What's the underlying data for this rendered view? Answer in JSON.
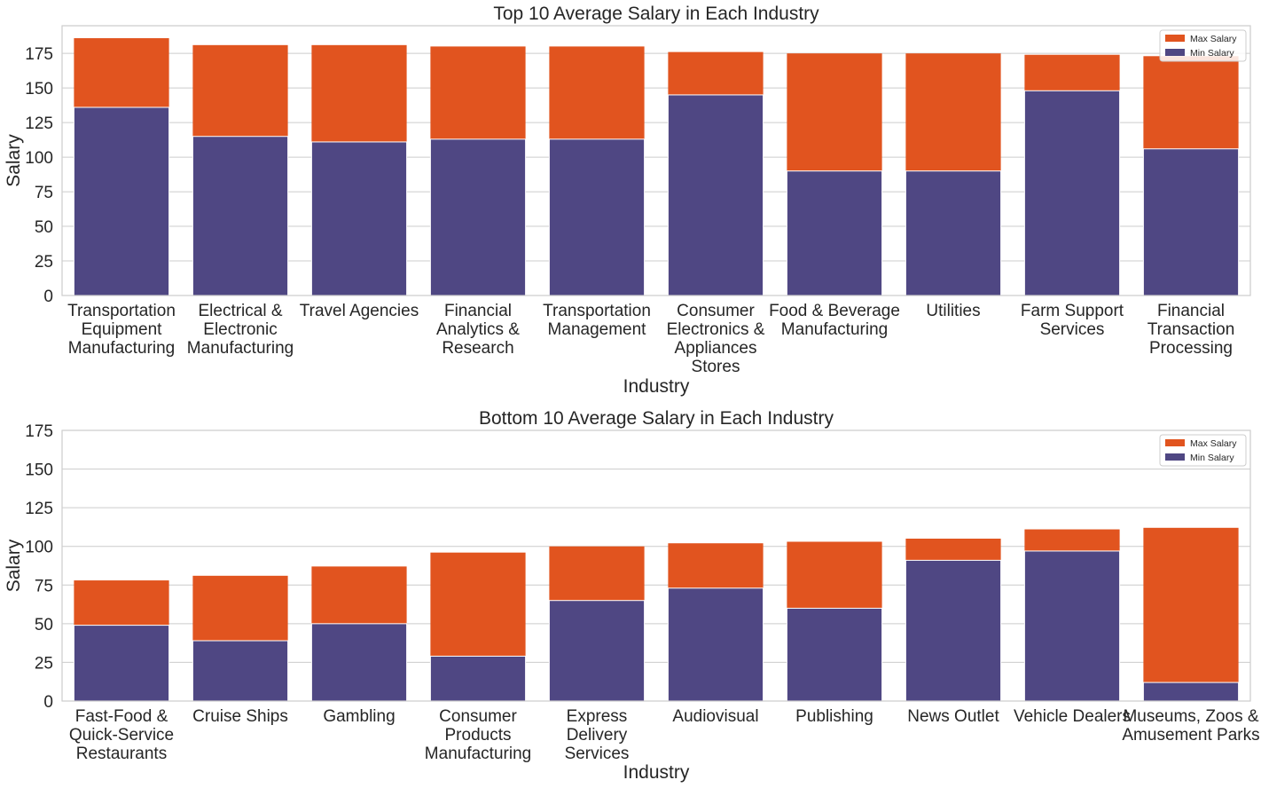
{
  "colors": {
    "max_salary": "#e1541f",
    "min_salary": "#4f4783",
    "grid": "#cccccc",
    "frame": "#cccccc",
    "text": "#262626"
  },
  "chart_data": [
    {
      "type": "bar",
      "title": "Top 10 Average Salary in Each Industry",
      "xlabel": "Industry",
      "ylabel": "Salary",
      "ylim": [
        0,
        195
      ],
      "yticks": [
        0,
        25,
        50,
        75,
        100,
        125,
        150,
        175
      ],
      "grid": true,
      "legend_position": "top-right",
      "categories": [
        [
          "Transportation",
          "Equipment",
          "Manufacturing"
        ],
        [
          "Electrical &",
          "Electronic",
          "Manufacturing"
        ],
        [
          "Travel Agencies"
        ],
        [
          "Financial",
          "Analytics &",
          "Research"
        ],
        [
          "Transportation",
          "Management"
        ],
        [
          "Consumer",
          "Electronics &",
          "Appliances",
          "Stores"
        ],
        [
          "Food & Beverage",
          "Manufacturing"
        ],
        [
          "Utilities"
        ],
        [
          "Farm Support",
          "Services"
        ],
        [
          "Financial",
          "Transaction",
          "Processing"
        ]
      ],
      "series": [
        {
          "name": "Max Salary",
          "values": [
            186,
            181,
            181,
            180,
            180,
            176,
            175,
            175,
            174,
            173
          ]
        },
        {
          "name": "Min Salary",
          "values": [
            136,
            115,
            111,
            113,
            113,
            145,
            90,
            90,
            148,
            106
          ]
        }
      ]
    },
    {
      "type": "bar",
      "title": "Bottom 10 Average Salary in Each Industry",
      "xlabel": "Industry",
      "ylabel": "Salary",
      "ylim": [
        0,
        175
      ],
      "yticks": [
        0,
        25,
        50,
        75,
        100,
        125,
        150,
        175
      ],
      "grid": true,
      "legend_position": "top-right",
      "categories": [
        [
          "Fast-Food &",
          "Quick-Service",
          "Restaurants"
        ],
        [
          "Cruise Ships"
        ],
        [
          "Gambling"
        ],
        [
          "Consumer",
          "Products",
          "Manufacturing"
        ],
        [
          "Express",
          "Delivery",
          "Services"
        ],
        [
          "Audiovisual"
        ],
        [
          "Publishing"
        ],
        [
          "News Outlet"
        ],
        [
          "Vehicle Dealers"
        ],
        [
          "Museums, Zoos &",
          "Amusement Parks"
        ]
      ],
      "series": [
        {
          "name": "Max Salary",
          "values": [
            78,
            81,
            87,
            96,
            100,
            102,
            103,
            105,
            111,
            112
          ]
        },
        {
          "name": "Min Salary",
          "values": [
            49,
            39,
            50,
            29,
            65,
            73,
            60,
            91,
            97,
            12
          ]
        }
      ]
    }
  ]
}
